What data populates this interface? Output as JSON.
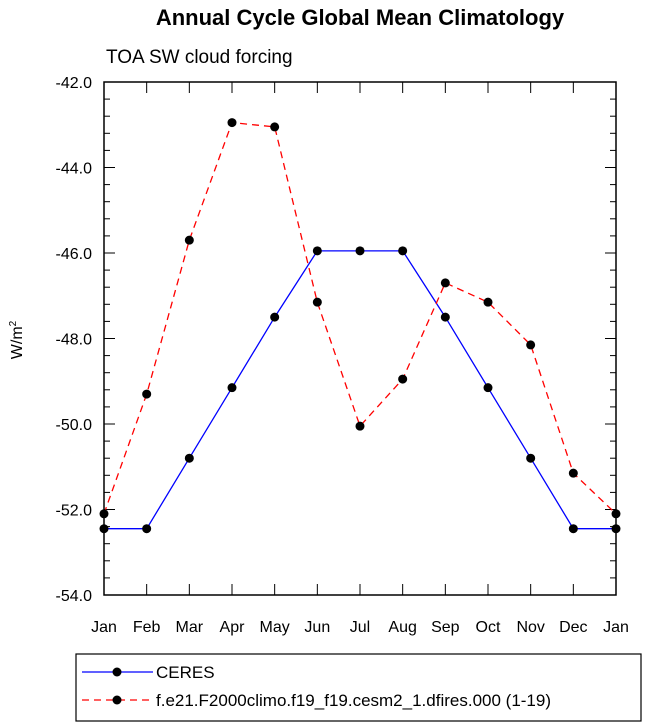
{
  "chart_data": {
    "type": "line",
    "title": "Annual Cycle Global Mean Climatology",
    "subtitle": "TOA SW cloud forcing",
    "ylabel": "W/m",
    "ylabel_sup": "2",
    "xlabel": "",
    "categories": [
      "Jan",
      "Feb",
      "Mar",
      "Apr",
      "May",
      "Jun",
      "Jul",
      "Aug",
      "Sep",
      "Oct",
      "Nov",
      "Dec",
      "Jan"
    ],
    "ylim": [
      -54.0,
      -42.0
    ],
    "yticks": [
      "-42.0",
      "-44.0",
      "-46.0",
      "-48.0",
      "-50.0",
      "-52.0",
      "-54.0"
    ],
    "ytick_values": [
      -42,
      -44,
      -46,
      -48,
      -50,
      -52,
      -54
    ],
    "legend_position": "bottom",
    "series": [
      {
        "name": "CERES",
        "color": "#0000ff",
        "dash": "solid",
        "values": [
          -52.45,
          -52.45,
          -50.8,
          -49.15,
          -47.5,
          -45.95,
          -45.95,
          -45.95,
          -47.5,
          -49.15,
          -50.8,
          -52.45,
          -52.45
        ]
      },
      {
        "name": "f.e21.F2000climo.f19_f19.cesm2_1.dfires.000 (1-19)",
        "color": "#ff0000",
        "dash": "dashed",
        "values": [
          -52.1,
          -49.3,
          -45.7,
          -42.95,
          -43.05,
          -47.15,
          -50.05,
          -48.95,
          -46.7,
          -47.15,
          -48.15,
          -51.15,
          -52.1
        ]
      }
    ]
  }
}
